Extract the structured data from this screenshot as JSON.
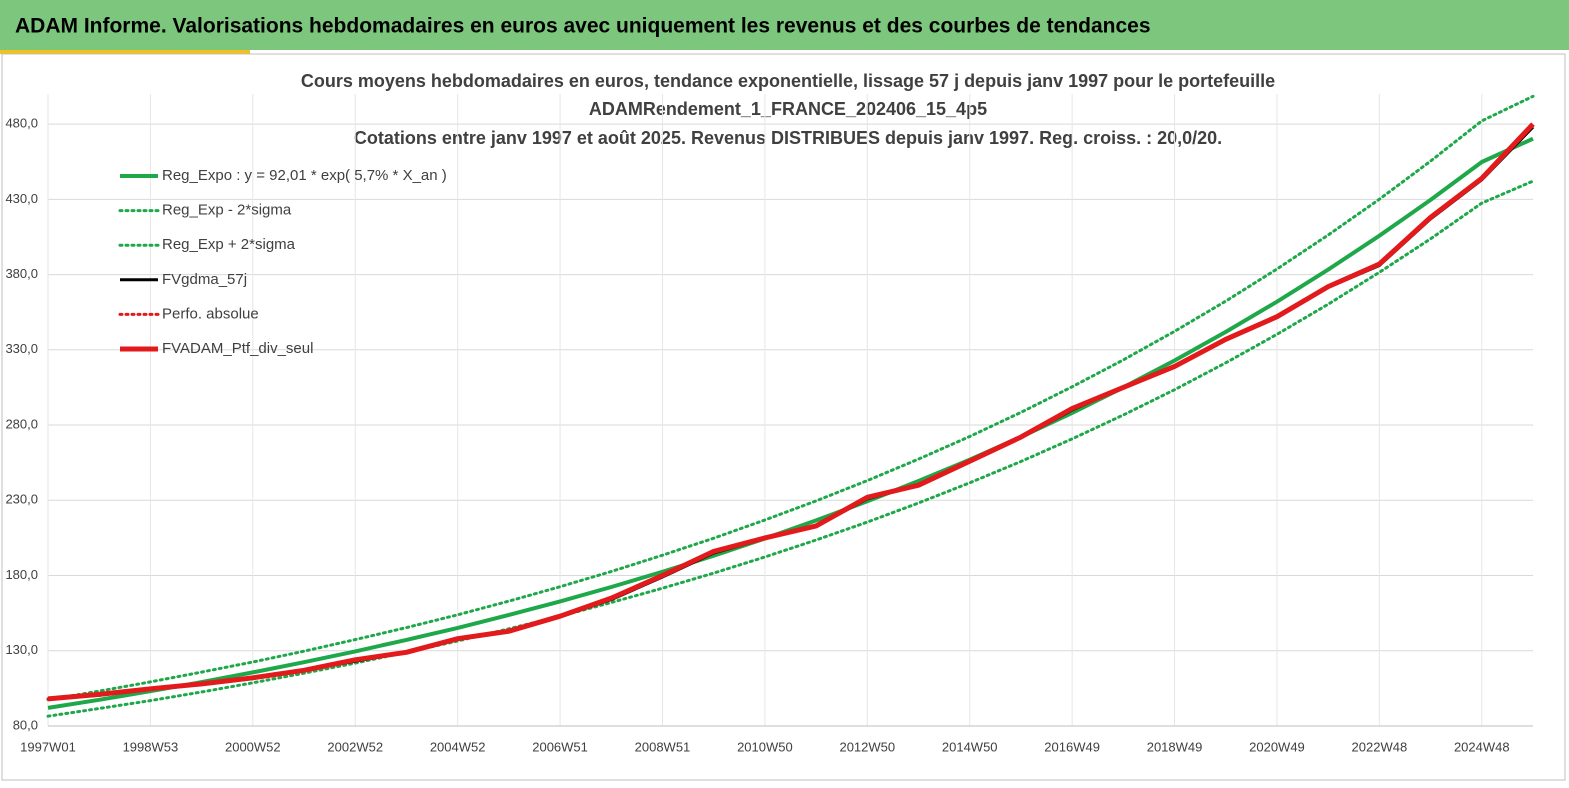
{
  "header": {
    "title": "ADAM Informe. Valorisations hebdomadaires en euros avec uniquement les revenus et des courbes de tendances"
  },
  "chart_data": {
    "type": "line",
    "title": "Cours moyens hebdomadaires  en euros, tendance exponentielle, lissage 57 j depuis janv 1997 pour le portefeuille",
    "subtitle": "ADAMRendement_1_FRANCE_202406_15_4p5",
    "subtitle2": "Cotations entre janv 1997 et août 2025. Revenus DISTRIBUES depuis janv 1997. Reg. croiss. : 20,0/20.",
    "categories": [
      "1997W01",
      null,
      "1998W53",
      null,
      "2000W52",
      null,
      "2002W52",
      null,
      "2004W52",
      null,
      "2006W51",
      null,
      "2008W51",
      null,
      "2010W50",
      null,
      "2012W50",
      null,
      "2014W50",
      null,
      "2016W49",
      null,
      "2018W49",
      null,
      "2020W49",
      null,
      "2022W48",
      null,
      "2024W48",
      null
    ],
    "series": [
      {
        "name": "Reg_Expo : y = 92,01 * exp( 5,7% *  X_an )",
        "color": "#1fa84a",
        "style": "solid",
        "width": 4,
        "values": [
          92,
          97.4,
          103.1,
          109.2,
          115.6,
          122.4,
          129.6,
          137.2,
          145.2,
          153.8,
          162.8,
          172.4,
          182.5,
          193.2,
          204.6,
          216.6,
          229.3,
          242.8,
          257.0,
          272.1,
          288.1,
          305.0,
          322.9,
          341.9,
          362.0,
          383.3,
          405.8,
          429.6,
          454.8,
          470.3
        ]
      },
      {
        "name": "Reg_Exp - 2*sigma",
        "color": "#1fa84a",
        "style": "dotted",
        "width": 3,
        "values": [
          86.5,
          91.6,
          96.9,
          102.6,
          108.7,
          115.1,
          121.8,
          129.0,
          136.5,
          144.6,
          153.0,
          162.1,
          171.6,
          181.6,
          192.3,
          203.6,
          215.5,
          228.2,
          241.6,
          255.8,
          270.8,
          286.7,
          303.5,
          321.4,
          340.3,
          360.3,
          381.5,
          403.8,
          427.5,
          442.1
        ]
      },
      {
        "name": "Reg_Exp + 2*sigma",
        "color": "#1fa84a",
        "style": "dotted",
        "width": 3,
        "values": [
          97.5,
          103.2,
          109.3,
          115.8,
          122.5,
          129.7,
          137.4,
          145.4,
          153.9,
          163.0,
          172.6,
          182.7,
          193.5,
          204.8,
          216.9,
          229.6,
          243.1,
          257.4,
          272.4,
          288.4,
          305.4,
          323.3,
          342.3,
          362.4,
          383.7,
          406.3,
          430.1,
          455.4,
          482.1,
          498.5
        ]
      },
      {
        "name": "FVgdma_57j",
        "color": "#000000",
        "style": "solid",
        "width": 3,
        "values": [
          98,
          100.5,
          104.5,
          107.5,
          111.5,
          117,
          123,
          129,
          137.5,
          143,
          152.5,
          164,
          179,
          195,
          204.5,
          212.5,
          231,
          240,
          255.5,
          271.5,
          290,
          305,
          318.5,
          336.5,
          351.5,
          371.5,
          386,
          417,
          443,
          478
        ]
      },
      {
        "name": "Perfo. absolue",
        "color": "#e31a1c",
        "style": "dotted",
        "width": 3,
        "values": [
          98,
          101,
          104.7,
          108,
          112,
          117,
          124,
          129,
          138,
          143,
          153,
          165,
          180,
          196,
          205,
          213,
          232,
          240,
          256,
          272,
          291,
          305,
          319,
          337,
          352,
          372,
          387,
          418,
          444,
          480
        ]
      },
      {
        "name": "FVADAM_Ptf_div_seul",
        "color": "#e31a1c",
        "style": "solid",
        "width": 5,
        "values": [
          98,
          101,
          104.7,
          108,
          112,
          117,
          124,
          129,
          138,
          143,
          153,
          165,
          180,
          196,
          205,
          213,
          232,
          240,
          256,
          272,
          291,
          305,
          319,
          337,
          352,
          372,
          387,
          418,
          444,
          480
        ]
      }
    ],
    "ylim": [
      80,
      500
    ],
    "yticks": [
      {
        "value": 80,
        "label": "80,0"
      },
      {
        "value": 130,
        "label": "130,0"
      },
      {
        "value": 180,
        "label": "180,0"
      },
      {
        "value": 230,
        "label": "230,0"
      },
      {
        "value": 280,
        "label": "280,0"
      },
      {
        "value": 330,
        "label": "330,0"
      },
      {
        "value": 380,
        "label": "380,0"
      },
      {
        "value": 430,
        "label": "430,0"
      },
      {
        "value": 480,
        "label": "480,0"
      }
    ],
    "grid": true,
    "legend": "top-left"
  }
}
